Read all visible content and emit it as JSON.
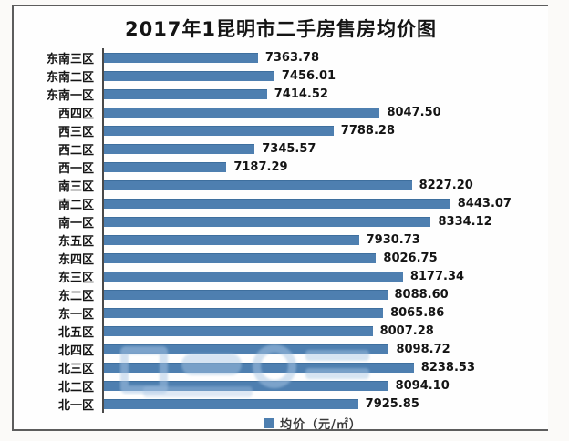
{
  "chart_data": {
    "type": "bar",
    "orientation": "horizontal",
    "title": "2017年1昆明市二手房售房均价图",
    "legend": {
      "label": "均价（元/㎡）",
      "position": "bottom",
      "swatch_color": "#4e7fb0"
    },
    "categories": [
      "东南三区",
      "东南二区",
      "东南一区",
      "西四区",
      "西三区",
      "西二区",
      "西一区",
      "南三区",
      "南二区",
      "南一区",
      "东五区",
      "东四区",
      "东三区",
      "东二区",
      "东一区",
      "北五区",
      "北四区",
      "北三区",
      "北二区",
      "北一区"
    ],
    "values": [
      7363.78,
      7456.01,
      7414.52,
      8047.5,
      7788.28,
      7345.57,
      7187.29,
      8227.2,
      8443.07,
      8334.12,
      7930.73,
      8026.75,
      8177.34,
      8088.6,
      8065.86,
      8007.28,
      8098.72,
      8238.53,
      8094.1,
      7925.85
    ],
    "xlim": [
      6500,
      8700
    ],
    "grid": false,
    "value_labels_shown": true,
    "bar_color": "#4e7fb0",
    "axis_color": "#4a4a4a",
    "frame_border_color": "#5d5d5d",
    "title_color": "#141414"
  },
  "watermark": {
    "present": true,
    "description": "illegible light-blue translucent website-logo watermark over lower bars",
    "color": "#a8c6e4"
  }
}
